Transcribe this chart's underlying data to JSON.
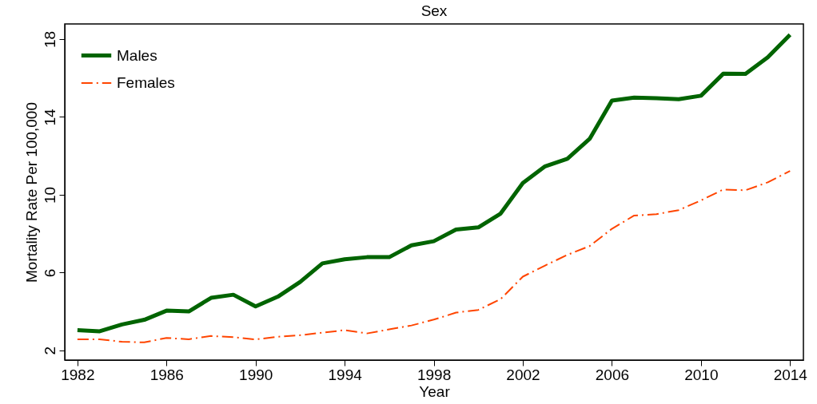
{
  "chart_data": {
    "type": "line",
    "title": "Sex",
    "xlabel": "Year",
    "ylabel": "Mortality Rate Per 100,000",
    "x": [
      1982,
      1983,
      1984,
      1985,
      1986,
      1987,
      1988,
      1989,
      1990,
      1991,
      1992,
      1993,
      1994,
      1995,
      1996,
      1997,
      1998,
      1999,
      2000,
      2001,
      2002,
      2003,
      2004,
      2005,
      2006,
      2007,
      2008,
      2009,
      2010,
      2011,
      2012,
      2013,
      2014
    ],
    "series": [
      {
        "name": "Males",
        "color": "#006400",
        "line_style": "solid",
        "values": [
          3.04,
          2.98,
          3.33,
          3.57,
          4.04,
          4.0,
          4.7,
          4.86,
          4.26,
          4.76,
          5.52,
          6.47,
          6.68,
          6.79,
          6.79,
          7.4,
          7.61,
          8.21,
          8.32,
          9.03,
          10.6,
          11.46,
          11.85,
          12.87,
          14.84,
          14.99,
          14.96,
          14.91,
          15.09,
          16.22,
          16.21,
          17.07,
          18.23
        ]
      },
      {
        "name": "Females",
        "color": "#ff4500",
        "line_style": "dashed",
        "values": [
          2.57,
          2.57,
          2.44,
          2.41,
          2.64,
          2.57,
          2.74,
          2.68,
          2.56,
          2.7,
          2.78,
          2.91,
          3.04,
          2.87,
          3.08,
          3.28,
          3.58,
          3.94,
          4.08,
          4.63,
          5.79,
          6.36,
          6.91,
          7.36,
          8.25,
          8.93,
          9.0,
          9.21,
          9.71,
          10.27,
          10.23,
          10.64,
          11.22
        ]
      }
    ],
    "xlim": [
      1981.43,
      2014.6
    ],
    "xticks": [
      1982,
      1986,
      1990,
      1994,
      1998,
      2002,
      2006,
      2010,
      2014
    ],
    "ylim": [
      1.5,
      18.78
    ],
    "yticks": [
      2,
      6,
      10,
      14,
      18
    ],
    "grid": false,
    "legend": "top left",
    "marker": "none"
  }
}
